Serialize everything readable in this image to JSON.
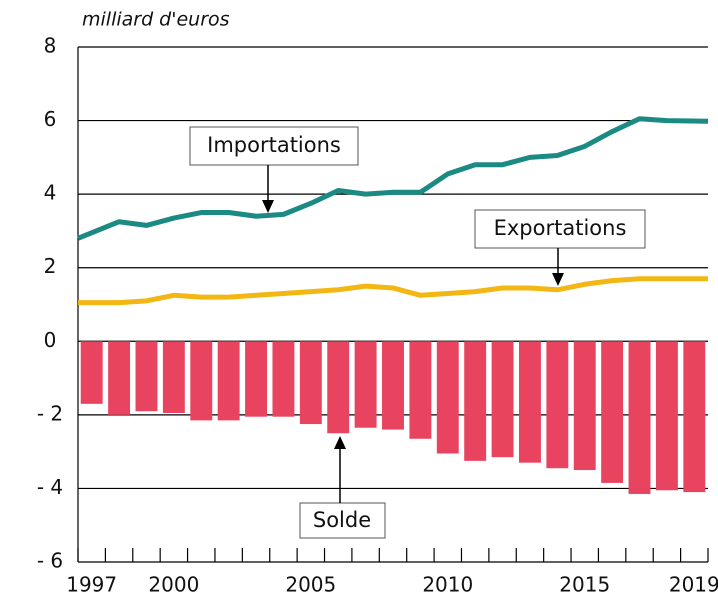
{
  "chart_data": {
    "type": "bar_line",
    "axis_label": "milliard d'euros",
    "categories": [
      1997,
      null,
      null,
      2000,
      null,
      null,
      null,
      null,
      2005,
      null,
      null,
      null,
      null,
      2010,
      null,
      null,
      null,
      null,
      2015,
      null,
      null,
      null,
      2019
    ],
    "series": [
      {
        "name": "Solde",
        "type": "bar",
        "color": "#e8435f",
        "values": [
          -1.7,
          -2.0,
          -1.9,
          -1.95,
          -2.15,
          -2.15,
          -2.05,
          -2.05,
          -2.25,
          -2.5,
          -2.35,
          -2.4,
          -2.65,
          -3.05,
          -3.25,
          -3.15,
          -3.3,
          -3.45,
          -3.5,
          -3.85,
          -4.15,
          -4.05,
          -4.1
        ]
      },
      {
        "name": "Importations",
        "type": "line",
        "color": "#1a8a82",
        "values": [
          2.8,
          3.25,
          3.15,
          3.35,
          3.5,
          3.5,
          3.4,
          3.45,
          3.75,
          4.1,
          4.0,
          4.05,
          4.05,
          4.55,
          4.8,
          4.8,
          5.0,
          5.05,
          5.3,
          5.7,
          6.05,
          6.0,
          5.98
        ]
      },
      {
        "name": "Exportations",
        "type": "line",
        "color": "#f2b713",
        "values": [
          1.05,
          1.05,
          1.1,
          1.25,
          1.2,
          1.2,
          1.25,
          1.3,
          1.35,
          1.4,
          1.5,
          1.45,
          1.25,
          1.3,
          1.35,
          1.45,
          1.45,
          1.4,
          1.55,
          1.65,
          1.7,
          1.7,
          1.7
        ]
      }
    ],
    "ylim": [
      -6,
      8
    ],
    "yticks": [
      {
        "value": -6,
        "label": "- 6"
      },
      {
        "value": -4,
        "label": "- 4"
      },
      {
        "value": -2,
        "label": "- 2"
      },
      0,
      2,
      4,
      6,
      8
    ],
    "grid": true
  }
}
